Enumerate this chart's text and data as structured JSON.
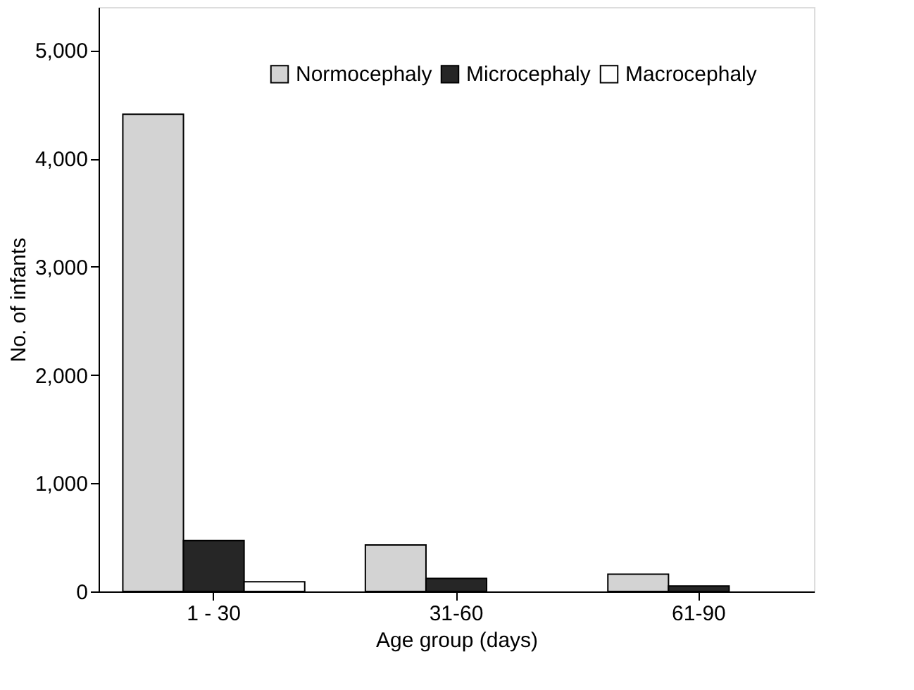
{
  "chart_data": {
    "type": "bar",
    "xlabel": "Age group (days)",
    "ylabel": "No. of infants",
    "categories": [
      "1 - 30",
      "31-60",
      "61-90"
    ],
    "series": [
      {
        "name": "Normocephaly",
        "color": "#d3d3d3",
        "values": [
          4410,
          430,
          160
        ]
      },
      {
        "name": "Microcephaly",
        "color": "#262626",
        "values": [
          470,
          120,
          50
        ]
      },
      {
        "name": "Macrocephaly",
        "color": "#ffffff",
        "values": [
          90,
          null,
          null
        ]
      }
    ],
    "ylim": [
      0,
      5400
    ],
    "yticks": [
      {
        "value": 0,
        "label": "0"
      },
      {
        "value": 1000,
        "label": "1,000"
      },
      {
        "value": 2000,
        "label": "2,000"
      },
      {
        "value": 3000,
        "label": "3,000"
      },
      {
        "value": 4000,
        "label": "4,000"
      },
      {
        "value": 5000,
        "label": "5,000"
      }
    ],
    "grid": false,
    "legend": "top right"
  }
}
